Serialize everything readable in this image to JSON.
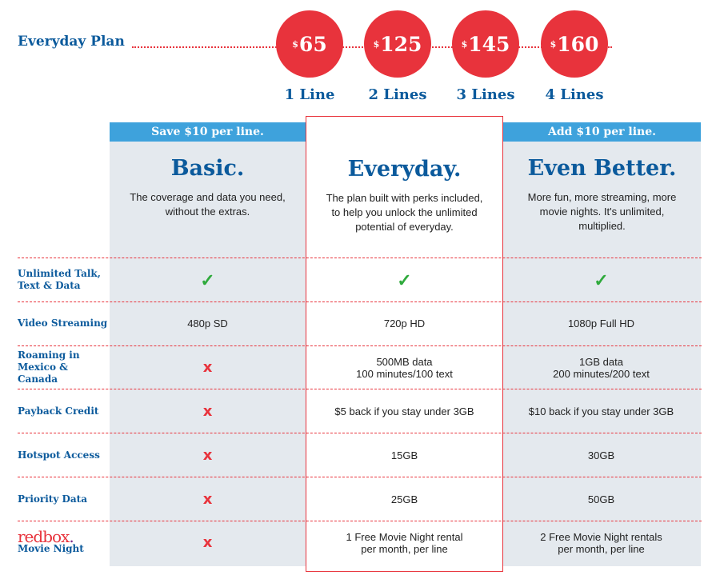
{
  "header": {
    "title": "Everyday Plan",
    "prices": [
      {
        "currency": "$",
        "amount": "65",
        "lines": "1 Line"
      },
      {
        "currency": "$",
        "amount": "125",
        "lines": "2 Lines"
      },
      {
        "currency": "$",
        "amount": "145",
        "lines": "3 Lines"
      },
      {
        "currency": "$",
        "amount": "160",
        "lines": "4 Lines"
      }
    ]
  },
  "plans": [
    {
      "banner": "Save $10 per line.",
      "name": "Basic.",
      "description": "The coverage and data you need, without the extras."
    },
    {
      "banner": "",
      "name": "Everyday.",
      "description": "The plan built with perks included, to help you unlock the unlimited potential of everyday."
    },
    {
      "banner": "Add $10 per line.",
      "name": "Even Better.",
      "description": "More fun, more streaming, more movie nights. It's unlimited, multiplied."
    }
  ],
  "rows": [
    {
      "label": "Unlimited Talk, Text & Data",
      "values": [
        "check",
        "check",
        "check"
      ]
    },
    {
      "label": "Video Streaming",
      "values": [
        "480p SD",
        "720p HD",
        "1080p Full HD"
      ]
    },
    {
      "label": "Roaming in Mexico & Canada",
      "values": [
        "x",
        "500MB data\n100 minutes/100 text",
        "1GB data\n200 minutes/200 text"
      ]
    },
    {
      "label": "Payback Credit",
      "values": [
        "x",
        "$5 back if you stay under 3GB",
        "$10 back if you stay under 3GB"
      ]
    },
    {
      "label": "Hotspot Access",
      "values": [
        "x",
        "15GB",
        "30GB"
      ]
    },
    {
      "label": "Priority Data",
      "values": [
        "x",
        "25GB",
        "50GB"
      ]
    },
    {
      "label": "Movie Night",
      "logo": "redbox.",
      "values": [
        "x",
        "1 Free Movie Night rental\nper month, per line",
        "2 Free Movie Night rentals\nper month, per line"
      ]
    }
  ],
  "icons": {
    "check": "checkmark-icon",
    "x": "x-icon"
  },
  "colors": {
    "brand_blue": "#0b5a9c",
    "accent_red": "#e8333c",
    "banner_blue": "#3ea2dc",
    "check_green": "#2faa3c"
  }
}
